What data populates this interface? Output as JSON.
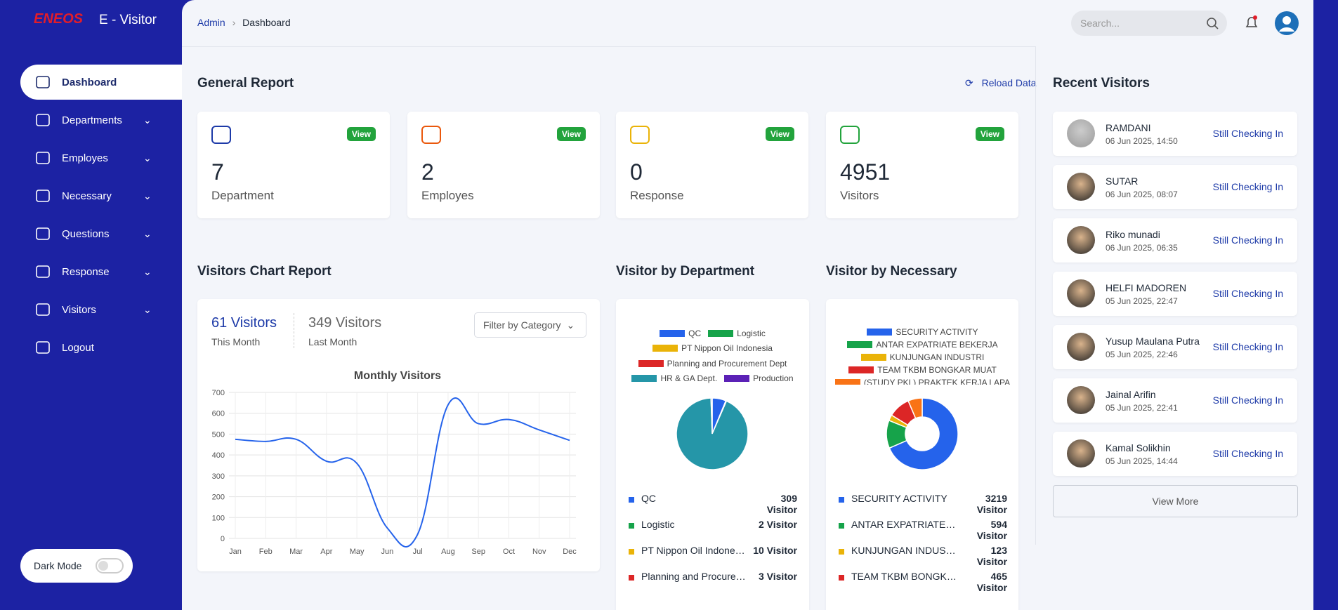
{
  "sidebar": {
    "brand": "ENEOS",
    "app_name": "E - Visitor",
    "menu": [
      "Dashboard",
      "Departments",
      "Employes",
      "Necessary",
      "Questions",
      "Response",
      "Visitors",
      "Logout"
    ],
    "dark_mode": "Dark Mode"
  },
  "header": {
    "breadcrumb": [
      "Admin",
      "Dashboard"
    ],
    "search_placeholder": "Search..."
  },
  "general_report": {
    "title": "General Report",
    "reload": "Reload Data",
    "cards": [
      {
        "value": 7,
        "label": "Department",
        "action": "View"
      },
      {
        "value": 2,
        "label": "Employes",
        "action": "View"
      },
      {
        "value": 0,
        "label": "Response",
        "action": "View"
      },
      {
        "value": 4951,
        "label": "Visitors",
        "action": "View"
      }
    ]
  },
  "visitors_chart": {
    "title": "Visitors Chart Report",
    "stats": [
      {
        "value": "61 Visitors",
        "label": "This Month"
      },
      {
        "value": "349 Visitors",
        "label": "Last Month"
      }
    ],
    "filter": "Filter by Category",
    "chart": {
      "type": "line",
      "title": "Monthly Visitors",
      "categories": [
        "Jan",
        "Feb",
        "Mar",
        "Apr",
        "May",
        "Jun",
        "Jul",
        "Aug",
        "Sep",
        "Oct",
        "Nov",
        "Dec"
      ],
      "values": [
        475,
        465,
        475,
        370,
        360,
        50,
        20,
        640,
        550,
        570,
        520,
        470
      ],
      "color": "#2563eb",
      "ylim": [
        0,
        700
      ],
      "yticks": [
        0,
        100,
        200,
        300,
        400,
        500,
        600,
        700
      ],
      "grid": true
    }
  },
  "department_chart": {
    "title": "Visitor by Department",
    "chart": {
      "type": "pie",
      "categories": [
        "QC",
        "Logistic",
        "PT Nippon Oil Indonesia",
        "Planning and Procurement Dept",
        "HR & GA Dept.",
        "Production"
      ],
      "values": [
        309,
        2,
        10,
        3,
        4600,
        27
      ],
      "colors": [
        "#2563eb",
        "#16a34a",
        "#eab308",
        "#dc2626",
        "#2596a8",
        "#5b21b6"
      ]
    },
    "list": [
      {
        "name": "QC",
        "count": "309 Visitor"
      },
      {
        "name": "Logistic",
        "count": "2 Visitor"
      },
      {
        "name": "PT Nippon Oil Indonesia",
        "count": "10 Visitor"
      },
      {
        "name": "Planning and Procurement Dept",
        "count": "3 Visitor"
      }
    ]
  },
  "necessary_chart": {
    "title": "Visitor by Necessary",
    "chart": {
      "type": "doughnut",
      "categories": [
        "SECURITY ACTIVITY",
        "ANTAR EXPATRIATE BEKERJA",
        "KUNJUNGAN INDUSTRI",
        "TEAM TKBM BONGKAR MUAT",
        "(STUDY PKL) PRAKTEK KERJA LAPA"
      ],
      "values": [
        3219,
        594,
        123,
        465,
        300
      ],
      "colors": [
        "#2563eb",
        "#16a34a",
        "#eab308",
        "#dc2626",
        "#f97316"
      ]
    },
    "list": [
      {
        "name": "SECURITY ACTIVITY",
        "count": "3219 Visitor"
      },
      {
        "name": "ANTAR EXPATRIATE BEKERJA",
        "count": "594 Visitor"
      },
      {
        "name": "KUNJUNGAN INDUSTRI",
        "count": "123 Visitor"
      },
      {
        "name": "TEAM TKBM BONGKAR MUAT",
        "count": "465 Visitor"
      }
    ]
  },
  "recent_visitors": {
    "title": "Recent Visitors",
    "items": [
      {
        "name": "RAMDANI",
        "time": "06 Jun 2025, 14:50",
        "status": "Still Checking In"
      },
      {
        "name": "SUTAR",
        "time": "06 Jun 2025, 08:07",
        "status": "Still Checking In"
      },
      {
        "name": "Riko munadi",
        "time": "06 Jun 2025, 06:35",
        "status": "Still Checking In"
      },
      {
        "name": "HELFI MADOREN",
        "time": "05 Jun 2025, 22:47",
        "status": "Still Checking In"
      },
      {
        "name": "Yusup Maulana Putra",
        "time": "05 Jun 2025, 22:46",
        "status": "Still Checking In"
      },
      {
        "name": "Jainal Arifin",
        "time": "05 Jun 2025, 22:41",
        "status": "Still Checking In"
      },
      {
        "name": "Kamal Solikhin",
        "time": "05 Jun 2025, 14:44",
        "status": "Still Checking In"
      }
    ],
    "more": "View More"
  }
}
